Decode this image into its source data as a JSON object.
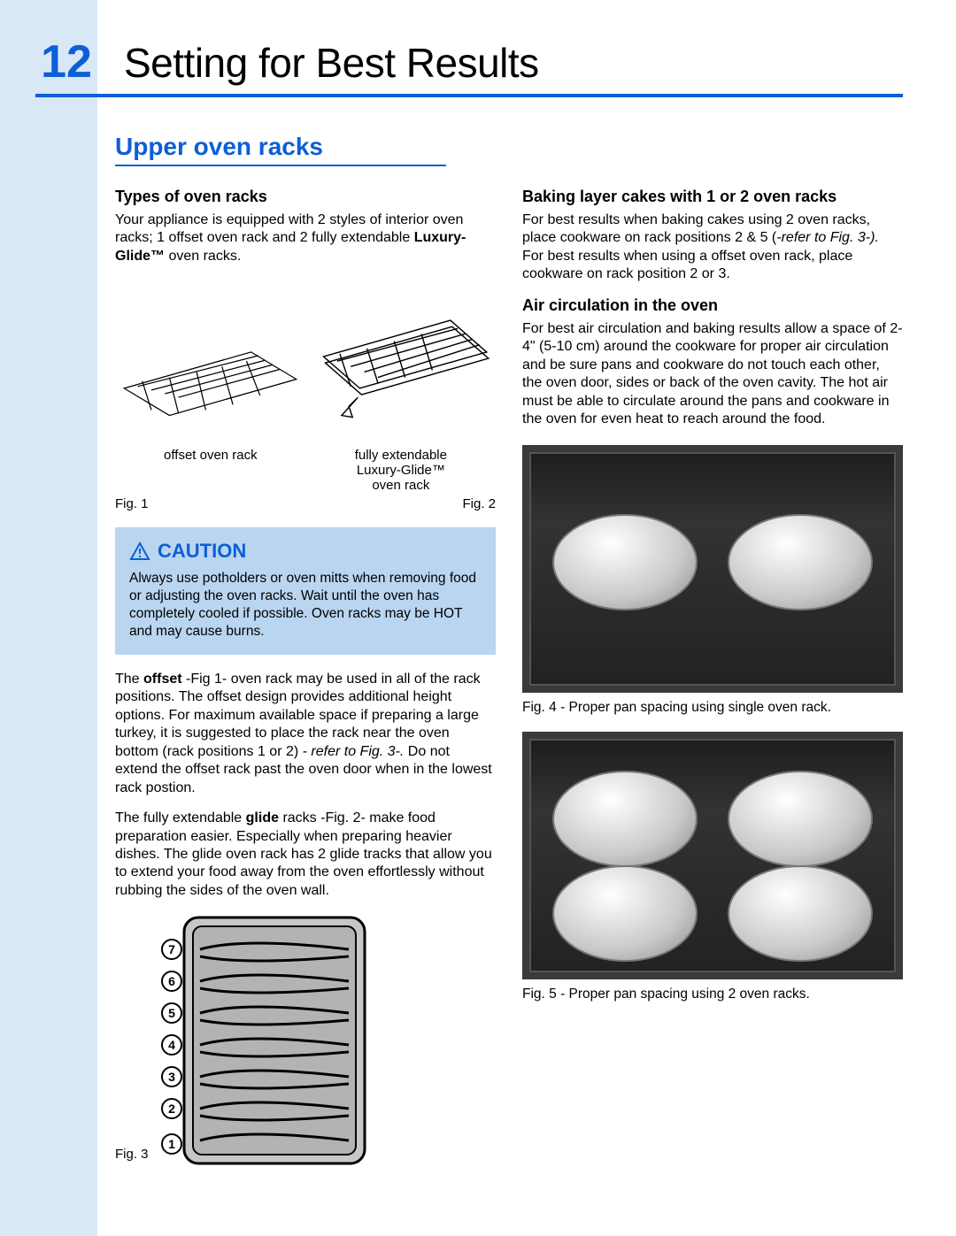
{
  "accent_color": "#0c5fd6",
  "sidebar_bg": "#d9e8f6",
  "caution_bg": "#b9d5f0",
  "page_number": "12",
  "page_title": "Setting for Best Results",
  "section_title": "Upper oven racks",
  "left": {
    "sub1": "Types of oven racks",
    "p1_a": "Your appliance is equipped with 2 styles of interior oven racks; 1 offset oven rack and 2 fully extendable ",
    "p1_bold": "Luxury-Glide™",
    "p1_b": " oven racks.",
    "fig1_label_left": "offset oven rack",
    "fig1_label_mid_a": "fully extendable",
    "fig1_label_mid_b": "Luxury-Glide™",
    "fig1_label_mid_c": "oven rack",
    "fig1_cap": "Fig. 1",
    "fig2_cap": "Fig. 2",
    "caution_head": "CAUTION",
    "caution_text_a": "Always use potholders or oven mitts when removing food or adjusting the oven racks. Wait until the oven has completely cooled if possible. Oven racks may be ",
    "caution_hot": "HOT",
    "caution_text_b": " and may cause burns.",
    "p2_a": "The ",
    "p2_bold1": "offset",
    "p2_b": " -Fig 1- oven rack may be used in all of the rack positions. The offset design provides additional height options. For maximum available space if preparing a large turkey, it is suggested to place the rack near the oven bottom (rack positions 1 or 2) ",
    "p2_it": "- refer to Fig. 3-.",
    "p2_c": " Do not extend the offset rack past the oven door when in the lowest rack postion.",
    "p3_a": "The fully extendable ",
    "p3_bold": "glide",
    "p3_b": " racks -Fig. 2- make food preparation easier. Especially when preparing heavier dishes. The glide oven rack has 2 glide tracks that  allow you to extend your food away from the oven effortlessly without rubbing the sides of the oven wall.",
    "fig3_cap": "Fig. 3",
    "rack_numbers": [
      "7",
      "6",
      "5",
      "4",
      "3",
      "2",
      "1"
    ]
  },
  "right": {
    "sub1": "Baking layer cakes with 1 or 2 oven racks",
    "p1_a": "For best results when baking cakes using 2 oven racks, place cookware on rack positions 2 & 5 (",
    "p1_it": "-refer to Fig. 3-).",
    "p1_b": "   For best results when using a offset oven rack, place cookware on rack position 2 or 3.",
    "sub2": "Air circulation in the oven",
    "p2": "For best air circulation and baking results allow  a space of 2-4\" (5-10 cm) around  the cookware for proper air circulation and be sure pans and cookware do not touch each other, the oven door, sides or back of the oven cavity. The hot air must be able to circulate around the pans and cookware in the oven for even heat to reach around the food.",
    "fig4_cap": "Fig. 4 - Proper pan spacing using single oven rack.",
    "fig5_cap": "Fig. 5 - Proper pan spacing using 2 oven racks."
  }
}
